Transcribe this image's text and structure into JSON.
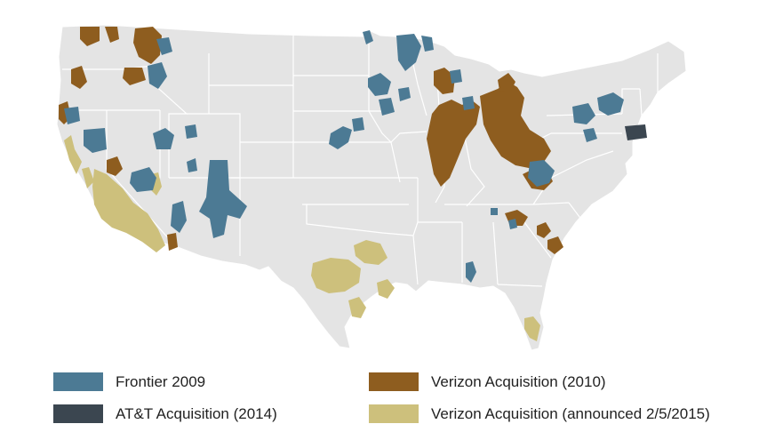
{
  "map": {
    "background_color": "#ffffff",
    "land_color": "#e4e4e4",
    "border_color": "#ffffff"
  },
  "legend": {
    "items": [
      {
        "label": "Frontier 2009",
        "color": "#4c7a94"
      },
      {
        "label": "AT&T Acquisition (2014)",
        "color": "#3b4650"
      },
      {
        "label": "Verizon Acquisition (2010)",
        "color": "#8e5d1f"
      },
      {
        "label": "Verizon Acquisition (announced 2/5/2015)",
        "color": "#cdc07c"
      }
    ]
  }
}
